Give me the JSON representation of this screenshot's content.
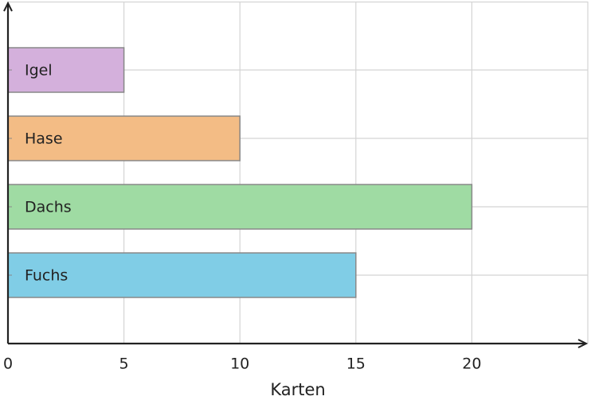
{
  "chart_data": {
    "type": "bar",
    "orientation": "horizontal",
    "categories": [
      "Fuchs",
      "Dachs",
      "Hase",
      "Igel"
    ],
    "values": [
      15,
      20,
      10,
      5
    ],
    "colors": [
      "#80cde6",
      "#9fdba3",
      "#f3bc85",
      "#d4b0dc"
    ],
    "xlabel": "Karten",
    "xlim": [
      0,
      25
    ],
    "xticks": [
      0,
      5,
      10,
      15,
      20
    ],
    "grid": true
  }
}
